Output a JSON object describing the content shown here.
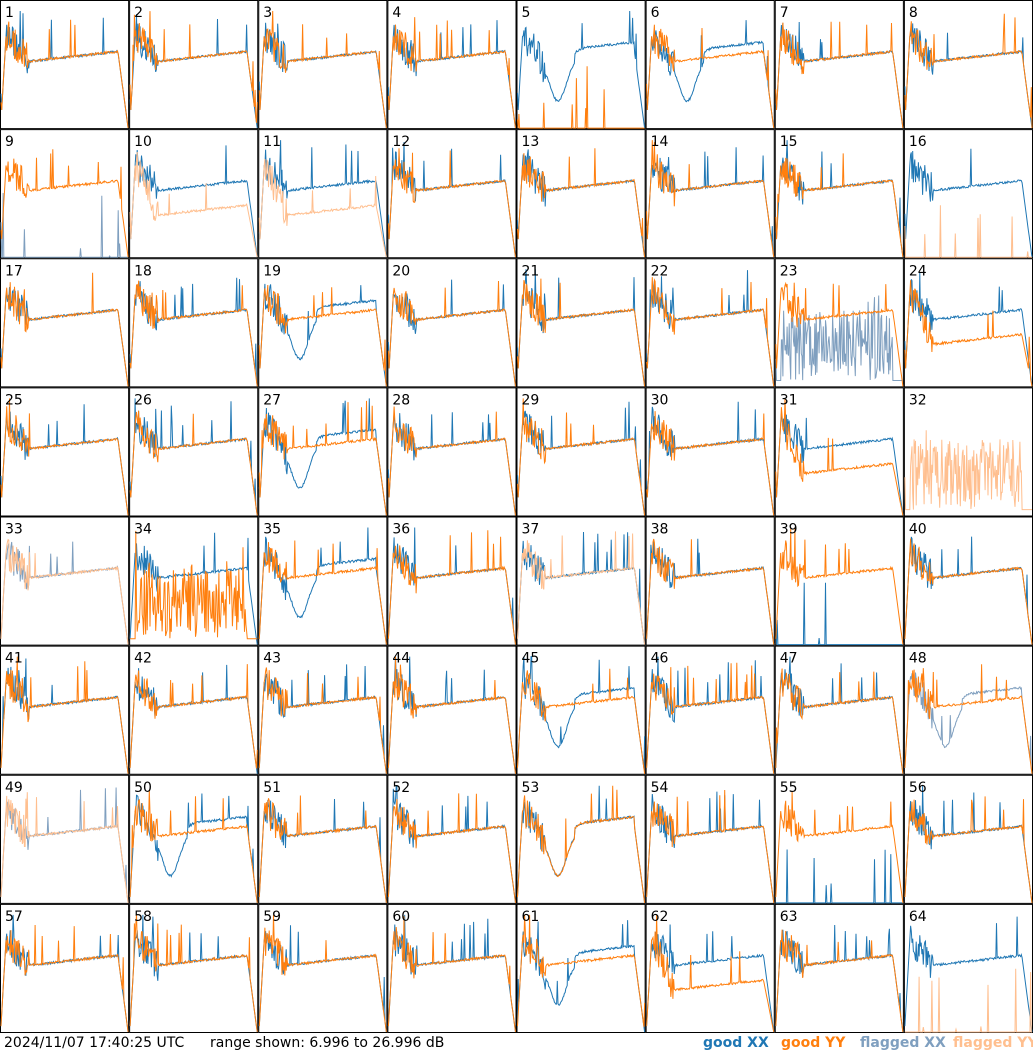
{
  "title": "",
  "footer": {
    "timestamp": "2024/11/07 17:40:25 UTC",
    "range_text": "range shown: 6.996 to 26.996 dB"
  },
  "legend": [
    {
      "label": "good XX",
      "color": "#1f77b4"
    },
    {
      "label": "good YY",
      "color": "#ff7f0e"
    },
    {
      "label": "flagged XX",
      "color": "#7f9fbf"
    },
    {
      "label": "flagged YY",
      "color": "#ffbf8f"
    }
  ],
  "chart_data": {
    "type": "line",
    "title": "",
    "y_range_db": [
      6.996,
      26.996
    ],
    "grid": {
      "rows": 8,
      "cols": 8
    },
    "panels": [
      {
        "id": 1,
        "xx": "good",
        "yy": "good",
        "shape_xx": "normal",
        "shape_yy": "normal"
      },
      {
        "id": 2,
        "xx": "good",
        "yy": "good",
        "shape_xx": "normal",
        "shape_yy": "normal"
      },
      {
        "id": 3,
        "xx": "good",
        "yy": "good",
        "shape_xx": "normal",
        "shape_yy": "normal"
      },
      {
        "id": 4,
        "xx": "good",
        "yy": "good",
        "shape_xx": "normal",
        "shape_yy": "normal"
      },
      {
        "id": 5,
        "xx": "good",
        "yy": "good",
        "shape_xx": "dip",
        "shape_yy": "dead"
      },
      {
        "id": 6,
        "xx": "good",
        "yy": "good",
        "shape_xx": "dip",
        "shape_yy": "normal"
      },
      {
        "id": 7,
        "xx": "good",
        "yy": "good",
        "shape_xx": "normal",
        "shape_yy": "normal"
      },
      {
        "id": 8,
        "xx": "good",
        "yy": "good",
        "shape_xx": "normal",
        "shape_yy": "normal"
      },
      {
        "id": 9,
        "xx": "flagged",
        "yy": "good",
        "shape_xx": "dead",
        "shape_yy": "normal"
      },
      {
        "id": 10,
        "xx": "good",
        "yy": "flagged",
        "shape_xx": "normal",
        "shape_yy": "low"
      },
      {
        "id": 11,
        "xx": "good",
        "yy": "flagged",
        "shape_xx": "normal",
        "shape_yy": "low"
      },
      {
        "id": 12,
        "xx": "good",
        "yy": "good",
        "shape_xx": "normal",
        "shape_yy": "normal"
      },
      {
        "id": 13,
        "xx": "good",
        "yy": "good",
        "shape_xx": "normal",
        "shape_yy": "normal"
      },
      {
        "id": 14,
        "xx": "good",
        "yy": "good",
        "shape_xx": "normal",
        "shape_yy": "normal"
      },
      {
        "id": 15,
        "xx": "good",
        "yy": "good",
        "shape_xx": "normal",
        "shape_yy": "normal"
      },
      {
        "id": 16,
        "xx": "good",
        "yy": "flagged",
        "shape_xx": "normal",
        "shape_yy": "dead"
      },
      {
        "id": 17,
        "xx": "good",
        "yy": "good",
        "shape_xx": "normal",
        "shape_yy": "normal"
      },
      {
        "id": 18,
        "xx": "good",
        "yy": "good",
        "shape_xx": "normal",
        "shape_yy": "normal"
      },
      {
        "id": 19,
        "xx": "good",
        "yy": "good",
        "shape_xx": "dip",
        "shape_yy": "normal"
      },
      {
        "id": 20,
        "xx": "good",
        "yy": "good",
        "shape_xx": "normal",
        "shape_yy": "normal"
      },
      {
        "id": 21,
        "xx": "good",
        "yy": "good",
        "shape_xx": "normal",
        "shape_yy": "normal"
      },
      {
        "id": 22,
        "xx": "good",
        "yy": "good",
        "shape_xx": "normal",
        "shape_yy": "normal"
      },
      {
        "id": 23,
        "xx": "flagged",
        "yy": "good",
        "shape_xx": "noisy",
        "shape_yy": "normal"
      },
      {
        "id": 24,
        "xx": "good",
        "yy": "good",
        "shape_xx": "normal",
        "shape_yy": "low"
      },
      {
        "id": 25,
        "xx": "good",
        "yy": "good",
        "shape_xx": "normal",
        "shape_yy": "normal"
      },
      {
        "id": 26,
        "xx": "good",
        "yy": "good",
        "shape_xx": "normal",
        "shape_yy": "normal"
      },
      {
        "id": 27,
        "xx": "good",
        "yy": "good",
        "shape_xx": "dip",
        "shape_yy": "normal"
      },
      {
        "id": 28,
        "xx": "good",
        "yy": "good",
        "shape_xx": "normal",
        "shape_yy": "normal"
      },
      {
        "id": 29,
        "xx": "good",
        "yy": "good",
        "shape_xx": "normal",
        "shape_yy": "normal"
      },
      {
        "id": 30,
        "xx": "good",
        "yy": "good",
        "shape_xx": "normal",
        "shape_yy": "normal"
      },
      {
        "id": 31,
        "xx": "good",
        "yy": "good",
        "shape_xx": "normal",
        "shape_yy": "low"
      },
      {
        "id": 32,
        "xx": "none",
        "yy": "flagged",
        "shape_xx": "none",
        "shape_yy": "noisy"
      },
      {
        "id": 33,
        "xx": "flagged",
        "yy": "flagged",
        "shape_xx": "normal",
        "shape_yy": "normal"
      },
      {
        "id": 34,
        "xx": "good",
        "yy": "good",
        "shape_xx": "normal",
        "shape_yy": "noisy"
      },
      {
        "id": 35,
        "xx": "good",
        "yy": "good",
        "shape_xx": "dip",
        "shape_yy": "normal"
      },
      {
        "id": 36,
        "xx": "good",
        "yy": "good",
        "shape_xx": "normal",
        "shape_yy": "normal"
      },
      {
        "id": 37,
        "xx": "good",
        "yy": "flagged",
        "shape_xx": "normal",
        "shape_yy": "normal"
      },
      {
        "id": 38,
        "xx": "good",
        "yy": "good",
        "shape_xx": "normal",
        "shape_yy": "normal"
      },
      {
        "id": 39,
        "xx": "good",
        "yy": "good",
        "shape_xx": "dead",
        "shape_yy": "normal"
      },
      {
        "id": 40,
        "xx": "good",
        "yy": "good",
        "shape_xx": "normal",
        "shape_yy": "normal"
      },
      {
        "id": 41,
        "xx": "good",
        "yy": "good",
        "shape_xx": "normal",
        "shape_yy": "normal"
      },
      {
        "id": 42,
        "xx": "good",
        "yy": "good",
        "shape_xx": "normal",
        "shape_yy": "normal"
      },
      {
        "id": 43,
        "xx": "good",
        "yy": "good",
        "shape_xx": "normal",
        "shape_yy": "normal"
      },
      {
        "id": 44,
        "xx": "good",
        "yy": "good",
        "shape_xx": "normal",
        "shape_yy": "normal"
      },
      {
        "id": 45,
        "xx": "good",
        "yy": "good",
        "shape_xx": "dip",
        "shape_yy": "normal"
      },
      {
        "id": 46,
        "xx": "good",
        "yy": "good",
        "shape_xx": "normal",
        "shape_yy": "normal"
      },
      {
        "id": 47,
        "xx": "good",
        "yy": "good",
        "shape_xx": "normal",
        "shape_yy": "normal"
      },
      {
        "id": 48,
        "xx": "flagged",
        "yy": "good",
        "shape_xx": "dip",
        "shape_yy": "normal"
      },
      {
        "id": 49,
        "xx": "flagged",
        "yy": "flagged",
        "shape_xx": "normal",
        "shape_yy": "normal"
      },
      {
        "id": 50,
        "xx": "good",
        "yy": "good",
        "shape_xx": "dip",
        "shape_yy": "normal"
      },
      {
        "id": 51,
        "xx": "good",
        "yy": "good",
        "shape_xx": "normal",
        "shape_yy": "normal"
      },
      {
        "id": 52,
        "xx": "good",
        "yy": "good",
        "shape_xx": "normal",
        "shape_yy": "normal"
      },
      {
        "id": 53,
        "xx": "good",
        "yy": "good",
        "shape_xx": "dip",
        "shape_yy": "dip"
      },
      {
        "id": 54,
        "xx": "good",
        "yy": "good",
        "shape_xx": "normal",
        "shape_yy": "normal"
      },
      {
        "id": 55,
        "xx": "good",
        "yy": "good",
        "shape_xx": "dead",
        "shape_yy": "normal"
      },
      {
        "id": 56,
        "xx": "good",
        "yy": "good",
        "shape_xx": "normal",
        "shape_yy": "normal"
      },
      {
        "id": 57,
        "xx": "good",
        "yy": "good",
        "shape_xx": "normal",
        "shape_yy": "normal"
      },
      {
        "id": 58,
        "xx": "good",
        "yy": "good",
        "shape_xx": "normal",
        "shape_yy": "normal"
      },
      {
        "id": 59,
        "xx": "good",
        "yy": "good",
        "shape_xx": "normal",
        "shape_yy": "normal"
      },
      {
        "id": 60,
        "xx": "good",
        "yy": "good",
        "shape_xx": "normal",
        "shape_yy": "normal"
      },
      {
        "id": 61,
        "xx": "good",
        "yy": "good",
        "shape_xx": "dip",
        "shape_yy": "normal"
      },
      {
        "id": 62,
        "xx": "good",
        "yy": "good",
        "shape_xx": "normal",
        "shape_yy": "low"
      },
      {
        "id": 63,
        "xx": "good",
        "yy": "good",
        "shape_xx": "normal",
        "shape_yy": "normal"
      },
      {
        "id": 64,
        "xx": "good",
        "yy": "flagged",
        "shape_xx": "normal",
        "shape_yy": "dead"
      }
    ]
  }
}
